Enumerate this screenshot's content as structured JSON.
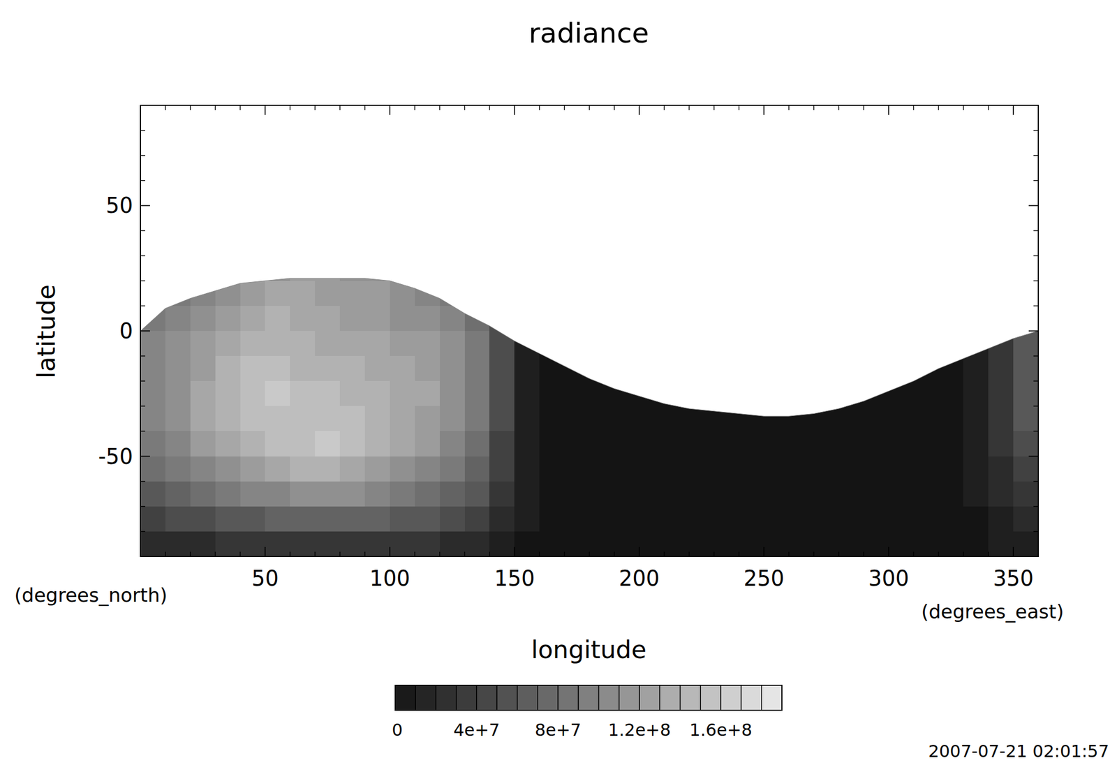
{
  "chart_data": {
    "type": "heatmap",
    "title": "radiance",
    "x_label": "longitude",
    "y_label": "latitude",
    "x_unit": "(degrees_east)",
    "y_unit": "(degrees_north)",
    "timestamp": "2007-07-21 02:01:57",
    "xlim": [
      0,
      360
    ],
    "ylim": [
      -90,
      90
    ],
    "xticks": [
      50,
      100,
      150,
      200,
      250,
      300,
      350
    ],
    "yticks": [
      -50,
      0,
      50
    ],
    "x": [
      5,
      15,
      25,
      35,
      45,
      55,
      65,
      75,
      85,
      95,
      105,
      115,
      125,
      135,
      145,
      155,
      165,
      175,
      185,
      195,
      205,
      215,
      225,
      235,
      245,
      255,
      265,
      275,
      285,
      295,
      305,
      315,
      325,
      335,
      345,
      355
    ],
    "y": [
      85,
      75,
      65,
      55,
      45,
      35,
      25,
      15,
      5,
      -5,
      -15,
      -25,
      -35,
      -45,
      -55,
      -65,
      -75,
      -85
    ],
    "values": [
      [
        null,
        null,
        null,
        null,
        null,
        null,
        null,
        null,
        null,
        null,
        null,
        null,
        null,
        null,
        null,
        null,
        null,
        null,
        null,
        null,
        null,
        null,
        null,
        null,
        null,
        null,
        null,
        null,
        null,
        null,
        null,
        null,
        null,
        null,
        null,
        null
      ],
      [
        null,
        null,
        null,
        null,
        null,
        null,
        null,
        null,
        null,
        null,
        null,
        null,
        null,
        null,
        null,
        null,
        null,
        null,
        null,
        null,
        null,
        null,
        null,
        null,
        null,
        null,
        null,
        null,
        null,
        null,
        null,
        null,
        null,
        null,
        null,
        null
      ],
      [
        null,
        null,
        null,
        null,
        null,
        null,
        null,
        null,
        null,
        null,
        null,
        null,
        null,
        null,
        null,
        null,
        null,
        null,
        null,
        null,
        null,
        null,
        null,
        null,
        null,
        null,
        null,
        null,
        null,
        null,
        null,
        null,
        null,
        null,
        null,
        null
      ],
      [
        null,
        null,
        null,
        null,
        null,
        null,
        null,
        null,
        null,
        null,
        null,
        null,
        null,
        null,
        null,
        null,
        null,
        null,
        null,
        null,
        null,
        null,
        null,
        null,
        null,
        null,
        null,
        null,
        null,
        null,
        null,
        null,
        null,
        null,
        null,
        null
      ],
      [
        null,
        null,
        null,
        null,
        null,
        null,
        null,
        null,
        null,
        null,
        null,
        null,
        null,
        null,
        null,
        null,
        null,
        null,
        null,
        null,
        null,
        null,
        null,
        null,
        null,
        null,
        null,
        null,
        null,
        null,
        null,
        null,
        null,
        null,
        null,
        null
      ],
      [
        null,
        null,
        null,
        null,
        null,
        null,
        null,
        null,
        null,
        null,
        null,
        null,
        null,
        null,
        null,
        null,
        null,
        null,
        null,
        null,
        null,
        null,
        null,
        null,
        null,
        null,
        null,
        null,
        null,
        null,
        null,
        null,
        null,
        null,
        null,
        null
      ],
      [
        null,
        null,
        null,
        null,
        null,
        110000000.0,
        120000000.0,
        120000000.0,
        110000000.0,
        110000000.0,
        null,
        null,
        null,
        null,
        null,
        null,
        null,
        null,
        null,
        null,
        null,
        null,
        null,
        null,
        null,
        null,
        null,
        null,
        null,
        null,
        null,
        null,
        null,
        null,
        null,
        null
      ],
      [
        null,
        90000000.0,
        100000000.0,
        110000000.0,
        120000000.0,
        130000000.0,
        130000000.0,
        120000000.0,
        120000000.0,
        120000000.0,
        110000000.0,
        100000000.0,
        90000000.0,
        null,
        null,
        null,
        null,
        null,
        null,
        null,
        null,
        null,
        null,
        null,
        null,
        null,
        null,
        null,
        null,
        null,
        null,
        null,
        null,
        null,
        null,
        null
      ],
      [
        90000000.0,
        100000000.0,
        110000000.0,
        120000000.0,
        130000000.0,
        140000000.0,
        130000000.0,
        130000000.0,
        120000000.0,
        120000000.0,
        110000000.0,
        110000000.0,
        100000000.0,
        80000000.0,
        50000000.0,
        null,
        null,
        null,
        null,
        null,
        null,
        null,
        null,
        null,
        null,
        null,
        null,
        null,
        null,
        null,
        null,
        null,
        null,
        null,
        null,
        null
      ],
      [
        100000000.0,
        110000000.0,
        120000000.0,
        130000000.0,
        140000000.0,
        140000000.0,
        140000000.0,
        130000000.0,
        130000000.0,
        130000000.0,
        120000000.0,
        120000000.0,
        110000000.0,
        90000000.0,
        50000000.0,
        10000000.0,
        0,
        null,
        null,
        null,
        null,
        null,
        null,
        null,
        null,
        null,
        null,
        null,
        null,
        null,
        null,
        null,
        null,
        10000000.0,
        30000000.0,
        60000000.0
      ],
      [
        100000000.0,
        110000000.0,
        120000000.0,
        140000000.0,
        150000000.0,
        150000000.0,
        140000000.0,
        140000000.0,
        140000000.0,
        130000000.0,
        130000000.0,
        120000000.0,
        110000000.0,
        90000000.0,
        50000000.0,
        10000000.0,
        0,
        0,
        0,
        null,
        null,
        null,
        null,
        null,
        null,
        null,
        null,
        null,
        null,
        null,
        null,
        0,
        0,
        10000000.0,
        30000000.0,
        60000000.0
      ],
      [
        100000000.0,
        110000000.0,
        130000000.0,
        140000000.0,
        150000000.0,
        160000000.0,
        150000000.0,
        150000000.0,
        140000000.0,
        140000000.0,
        130000000.0,
        130000000.0,
        110000000.0,
        90000000.0,
        50000000.0,
        10000000.0,
        0,
        0,
        0,
        0,
        0,
        0,
        null,
        null,
        null,
        null,
        null,
        null,
        0,
        0,
        0,
        0,
        0,
        10000000.0,
        30000000.0,
        60000000.0
      ],
      [
        100000000.0,
        110000000.0,
        130000000.0,
        140000000.0,
        150000000.0,
        150000000.0,
        150000000.0,
        150000000.0,
        150000000.0,
        140000000.0,
        130000000.0,
        120000000.0,
        110000000.0,
        90000000.0,
        50000000.0,
        10000000.0,
        0,
        0,
        0,
        0,
        0,
        0,
        0,
        0,
        0,
        0,
        0,
        0,
        0,
        0,
        0,
        0,
        0,
        10000000.0,
        30000000.0,
        60000000.0
      ],
      [
        90000000.0,
        100000000.0,
        120000000.0,
        130000000.0,
        140000000.0,
        150000000.0,
        150000000.0,
        160000000.0,
        150000000.0,
        140000000.0,
        130000000.0,
        120000000.0,
        100000000.0,
        80000000.0,
        40000000.0,
        10000000.0,
        0,
        0,
        0,
        0,
        0,
        0,
        0,
        0,
        0,
        0,
        0,
        0,
        0,
        0,
        0,
        0,
        0,
        10000000.0,
        30000000.0,
        50000000.0
      ],
      [
        80000000.0,
        90000000.0,
        100000000.0,
        110000000.0,
        120000000.0,
        130000000.0,
        140000000.0,
        140000000.0,
        130000000.0,
        120000000.0,
        110000000.0,
        100000000.0,
        90000000.0,
        70000000.0,
        40000000.0,
        10000000.0,
        0,
        0,
        0,
        0,
        0,
        0,
        0,
        0,
        0,
        0,
        0,
        0,
        0,
        0,
        0,
        0,
        0,
        10000000.0,
        20000000.0,
        40000000.0
      ],
      [
        60000000.0,
        70000000.0,
        80000000.0,
        90000000.0,
        100000000.0,
        100000000.0,
        110000000.0,
        110000000.0,
        110000000.0,
        100000000.0,
        90000000.0,
        80000000.0,
        70000000.0,
        60000000.0,
        30000000.0,
        10000000.0,
        0,
        0,
        0,
        0,
        0,
        0,
        0,
        0,
        0,
        0,
        0,
        0,
        0,
        0,
        0,
        0,
        0,
        10000000.0,
        20000000.0,
        30000000.0
      ],
      [
        40000000.0,
        50000000.0,
        50000000.0,
        60000000.0,
        60000000.0,
        70000000.0,
        70000000.0,
        70000000.0,
        70000000.0,
        70000000.0,
        60000000.0,
        60000000.0,
        50000000.0,
        40000000.0,
        20000000.0,
        10000000.0,
        0,
        0,
        0,
        0,
        0,
        0,
        0,
        0,
        0,
        0,
        0,
        0,
        0,
        0,
        0,
        0,
        0,
        0,
        10000000.0,
        20000000.0
      ],
      [
        20000000.0,
        20000000.0,
        20000000.0,
        30000000.0,
        30000000.0,
        30000000.0,
        30000000.0,
        30000000.0,
        30000000.0,
        30000000.0,
        30000000.0,
        30000000.0,
        20000000.0,
        20000000.0,
        10000000.0,
        0,
        0,
        0,
        0,
        0,
        0,
        0,
        0,
        0,
        0,
        0,
        0,
        0,
        0,
        0,
        0,
        0,
        0,
        0,
        10000000.0,
        10000000.0
      ]
    ],
    "coverage_edge": {
      "lon": [
        0,
        10,
        20,
        30,
        40,
        50,
        60,
        70,
        80,
        90,
        100,
        110,
        120,
        130,
        140,
        150,
        160,
        170,
        180,
        190,
        200,
        210,
        220,
        230,
        240,
        250,
        260,
        270,
        280,
        290,
        300,
        310,
        320,
        330,
        340,
        350,
        360
      ],
      "lat": [
        0,
        9,
        13,
        16,
        19,
        20,
        21,
        21,
        21,
        21,
        20,
        17,
        13,
        7,
        2,
        -4,
        -9,
        -14,
        -19,
        -23,
        -26,
        -29,
        -31,
        -32,
        -33,
        -34,
        -34,
        -33,
        -31,
        -28,
        -24,
        -20,
        -15,
        -11,
        -7,
        -3,
        0
      ]
    },
    "colorbar": {
      "range": [
        0,
        190000000
      ],
      "levels": 19,
      "ticks": [
        0,
        {
          "value": 40000000,
          "label": "4e+7"
        },
        {
          "value": 80000000,
          "label": "8e+7"
        },
        {
          "value": 120000000,
          "label": "1.2e+8"
        },
        {
          "value": 160000000,
          "label": "1.6e+8"
        }
      ]
    }
  }
}
